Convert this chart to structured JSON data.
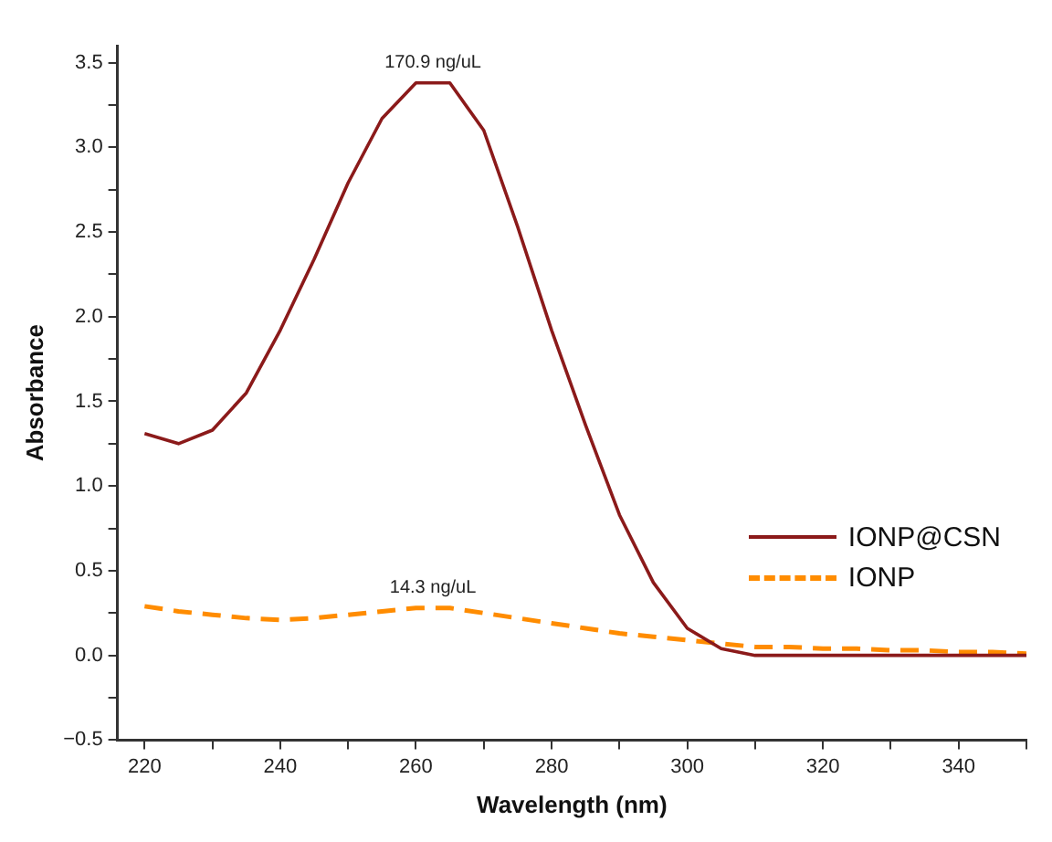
{
  "chart_data": {
    "type": "line",
    "xlabel": "Wavelength (nm)",
    "ylabel": "Absorbance",
    "x": [
      220,
      225,
      230,
      235,
      240,
      245,
      250,
      255,
      260,
      265,
      270,
      275,
      280,
      285,
      290,
      295,
      300,
      305,
      310,
      315,
      320,
      325,
      330,
      335,
      340,
      345,
      350
    ],
    "series": [
      {
        "name": "IONP@CSN",
        "color": "#8b1a1a",
        "line_style": "solid",
        "values": [
          1.31,
          1.25,
          1.33,
          1.55,
          1.92,
          2.34,
          2.79,
          3.17,
          3.38,
          3.38,
          3.1,
          2.53,
          1.92,
          1.36,
          0.83,
          0.43,
          0.16,
          0.04,
          0.0,
          0.0,
          0.0,
          0.0,
          0.0,
          0.0,
          0.0,
          0.0,
          0.0
        ]
      },
      {
        "name": "IONP",
        "color": "#ff8c00",
        "line_style": "dashed",
        "values": [
          0.29,
          0.26,
          0.24,
          0.22,
          0.21,
          0.22,
          0.24,
          0.26,
          0.28,
          0.28,
          0.25,
          0.22,
          0.19,
          0.16,
          0.13,
          0.11,
          0.09,
          0.07,
          0.05,
          0.05,
          0.04,
          0.04,
          0.03,
          0.03,
          0.02,
          0.02,
          0.01
        ]
      }
    ],
    "xlim": [
      216,
      350
    ],
    "ylim": [
      -0.5,
      3.6
    ],
    "xticks": [
      220,
      {
        "value": 230,
        "label": null
      },
      240,
      {
        "value": 250,
        "label": null
      },
      260,
      {
        "value": 270,
        "label": null
      },
      280,
      {
        "value": 290,
        "label": null
      },
      300,
      {
        "value": 310,
        "label": null
      },
      320,
      {
        "value": 330,
        "label": null
      },
      340,
      {
        "value": 350,
        "label": null
      }
    ],
    "yticks": [
      {
        "value": -0.5,
        "label": "−0.5"
      },
      {
        "value": -0.25,
        "label": null
      },
      {
        "value": 0,
        "label": "0.0"
      },
      {
        "value": 0.25,
        "label": null
      },
      0.5,
      {
        "value": 0.75,
        "label": null
      },
      {
        "value": 1,
        "label": "1.0"
      },
      {
        "value": 1.25,
        "label": null
      },
      1.5,
      {
        "value": 1.75,
        "label": null
      },
      {
        "value": 2,
        "label": "2.0"
      },
      {
        "value": 2.25,
        "label": null
      },
      2.5,
      {
        "value": 2.75,
        "label": null
      },
      {
        "value": 3,
        "label": "3.0"
      },
      {
        "value": 3.25,
        "label": null
      },
      3.5
    ],
    "annotations": [
      {
        "text": "170.9 ng/uL",
        "x": 262.5,
        "y": 3.38
      },
      {
        "text": "14.3 ng/uL",
        "x": 262.5,
        "y": 0.28
      }
    ],
    "grid": false,
    "legend": "right",
    "marker": "none"
  }
}
